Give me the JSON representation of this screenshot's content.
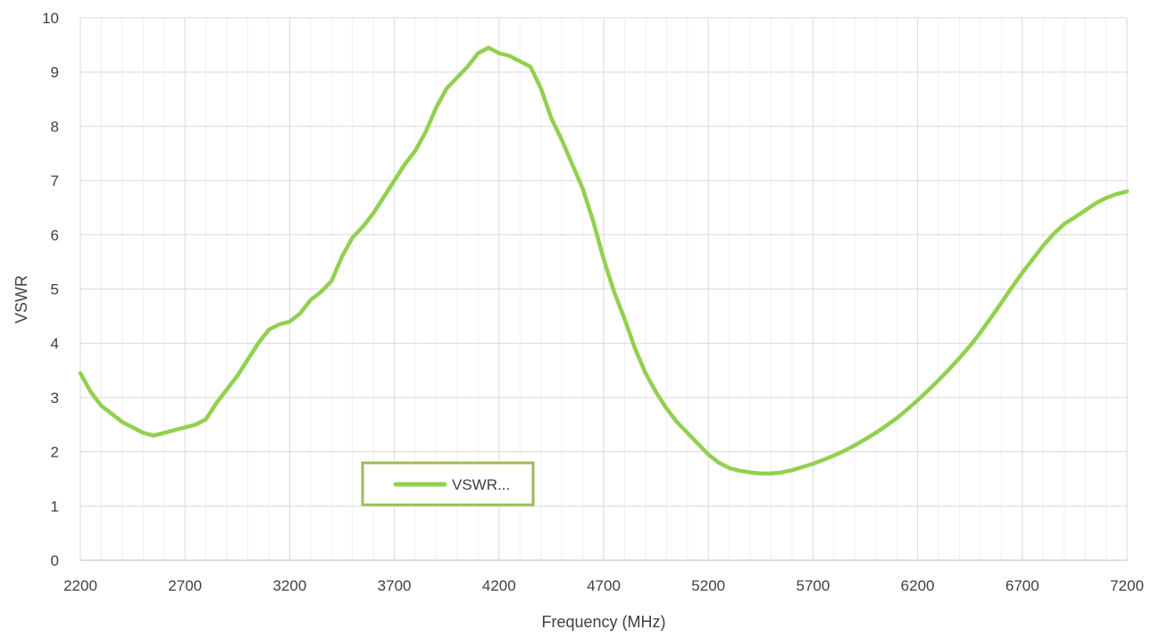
{
  "chart_data": {
    "type": "line",
    "xlabel": "Frequency (MHz)",
    "ylabel": "VSWR",
    "xlim": [
      2200,
      7200
    ],
    "ylim": [
      0,
      10
    ],
    "x_ticks": [
      "2200",
      "2700",
      "3200",
      "3700",
      "4200",
      "4700",
      "5200",
      "5700",
      "6200",
      "6700",
      "7200"
    ],
    "y_ticks": [
      "0",
      "1",
      "2",
      "3",
      "4",
      "5",
      "6",
      "7",
      "8",
      "9",
      "10"
    ],
    "grid": "on",
    "legend": {
      "position": "bottom-center",
      "label": "VSWR..."
    },
    "colors": {
      "line": "#92d050",
      "grid": "#d9d9d9",
      "legend_border": "#9bbb59"
    },
    "series": [
      {
        "x": [
          2200,
          2250,
          2300,
          2350,
          2400,
          2450,
          2500,
          2550,
          2600,
          2650,
          2700,
          2750,
          2800,
          2850,
          2900,
          2950,
          3000,
          3050,
          3100,
          3150,
          3200,
          3250,
          3300,
          3350,
          3400,
          3450,
          3500,
          3550,
          3600,
          3650,
          3700,
          3750,
          3800,
          3850,
          3900,
          3950,
          4000,
          4050,
          4100,
          4150,
          4200,
          4250,
          4300,
          4350,
          4400,
          4450,
          4500,
          4550,
          4600,
          4650,
          4700,
          4750,
          4800,
          4850,
          4900,
          4950,
          5000,
          5050,
          5100,
          5150,
          5200,
          5250,
          5300,
          5350,
          5400,
          5450,
          5500,
          5550,
          5600,
          5650,
          5700,
          5750,
          5800,
          5850,
          5900,
          5950,
          6000,
          6050,
          6100,
          6150,
          6200,
          6250,
          6300,
          6350,
          6400,
          6450,
          6500,
          6550,
          6600,
          6650,
          6700,
          6750,
          6800,
          6850,
          6900,
          6950,
          7000,
          7050,
          7100,
          7150,
          7200
        ],
        "values": [
          3.45,
          3.1,
          2.85,
          2.7,
          2.55,
          2.45,
          2.35,
          2.3,
          2.35,
          2.4,
          2.45,
          2.5,
          2.6,
          2.9,
          3.15,
          3.4,
          3.7,
          4.0,
          4.25,
          4.35,
          4.4,
          4.55,
          4.8,
          4.95,
          5.15,
          5.6,
          5.95,
          6.15,
          6.4,
          6.7,
          7.0,
          7.3,
          7.55,
          7.9,
          8.35,
          8.7,
          8.9,
          9.1,
          9.35,
          9.45,
          9.35,
          9.3,
          9.2,
          9.1,
          8.7,
          8.15,
          7.75,
          7.3,
          6.85,
          6.25,
          5.55,
          4.95,
          4.45,
          3.9,
          3.45,
          3.1,
          2.8,
          2.55,
          2.35,
          2.15,
          1.95,
          1.8,
          1.7,
          1.65,
          1.62,
          1.6,
          1.6,
          1.62,
          1.66,
          1.72,
          1.78,
          1.85,
          1.93,
          2.02,
          2.12,
          2.23,
          2.35,
          2.48,
          2.62,
          2.78,
          2.95,
          3.13,
          3.32,
          3.52,
          3.73,
          3.95,
          4.2,
          4.47,
          4.75,
          5.03,
          5.3,
          5.55,
          5.8,
          6.02,
          6.2,
          6.32,
          6.45,
          6.58,
          6.68,
          6.75,
          6.8
        ]
      }
    ]
  }
}
